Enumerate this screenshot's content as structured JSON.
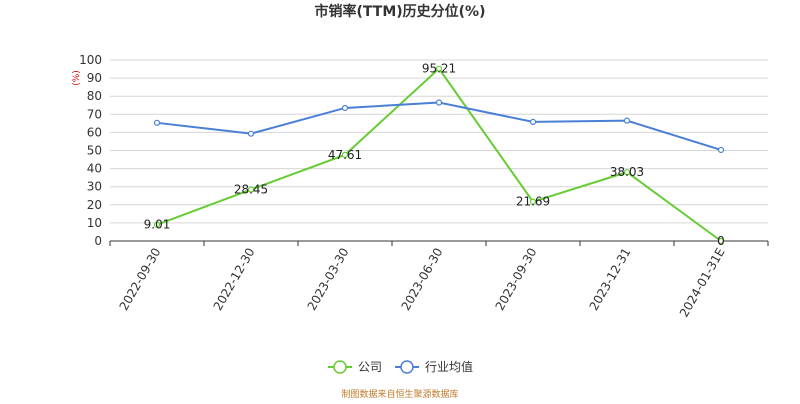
{
  "colors": {
    "company": "#66cc33",
    "industry": "#4a7fd6",
    "grid": "#d6d6d6",
    "axis": "#333333",
    "source": "#c07a2a",
    "unit": "#d00000"
  },
  "chart_data": {
    "type": "line",
    "title": "市销率(TTM)历史分位(%)",
    "ylabel": "(%)",
    "ylim": [
      0,
      100
    ],
    "yticks": [
      "0",
      "10",
      "20",
      "30",
      "40",
      "50",
      "60",
      "70",
      "80",
      "90",
      "100"
    ],
    "categories": [
      "2022-09-30",
      "2022-12-30",
      "2023-03-30",
      "2023-06-30",
      "2023-09-30",
      "2023-12-31",
      "2024-01-31E"
    ],
    "series": [
      {
        "name": "公司",
        "values": [
          9.01,
          28.45,
          47.61,
          95.21,
          21.69,
          38.03,
          0
        ],
        "labels": [
          "9.01",
          "28.45",
          "47.61",
          "95.21",
          "21.69",
          "38.03",
          "0"
        ]
      },
      {
        "name": "行业均值",
        "values": [
          65.3,
          59.3,
          73.5,
          76.5,
          65.8,
          66.5,
          50.3
        ]
      }
    ],
    "grid": true,
    "legend": "bottom-center"
  },
  "source_note": "制图数据来自恒生聚源数据库"
}
